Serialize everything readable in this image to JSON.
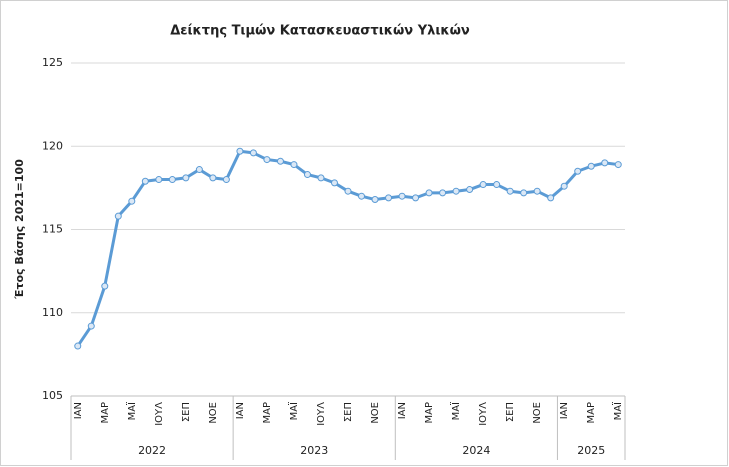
{
  "chart_data": {
    "type": "line",
    "title": "Δείκτης Τιμών Κατασκευαστικών Υλικών",
    "y_label": "Έτος Βάσης 2021=100",
    "groups": [
      {
        "label": "2022",
        "categories": [
          "ΙΑΝ",
          null,
          "ΜΑΡ",
          null,
          "ΜΑΪ",
          null,
          "ΙΟΥΛ",
          null,
          "ΣΕΠ",
          null,
          "ΝΟΕ",
          null
        ]
      },
      {
        "label": "2023",
        "categories": [
          "ΙΑΝ",
          null,
          "ΜΑΡ",
          null,
          "ΜΑΪ",
          null,
          "ΙΟΥΛ",
          null,
          "ΣΕΠ",
          null,
          "ΝΟΕ",
          null
        ]
      },
      {
        "label": "2024",
        "categories": [
          "ΙΑΝ",
          null,
          "ΜΑΡ",
          null,
          "ΜΑΪ",
          null,
          "ΙΟΥΛ",
          null,
          "ΣΕΠ",
          null,
          "ΝΟΕ",
          null
        ]
      },
      {
        "label": "2025",
        "categories": [
          "ΙΑΝ",
          null,
          "ΜΑΡ",
          null,
          "ΜΑΪ"
        ]
      }
    ],
    "values": [
      108.0,
      109.2,
      111.6,
      115.8,
      116.7,
      117.9,
      118.0,
      118.0,
      118.1,
      118.6,
      118.1,
      118.0,
      119.7,
      119.6,
      119.2,
      119.1,
      118.9,
      118.3,
      118.1,
      117.8,
      117.3,
      117.0,
      116.8,
      116.9,
      117.0,
      116.9,
      117.2,
      117.2,
      117.3,
      117.4,
      117.7,
      117.7,
      117.3,
      117.2,
      117.3,
      116.9,
      117.6,
      118.5,
      118.8,
      119.0,
      118.9
    ],
    "color": "#5b9bd5",
    "ylim": [
      105,
      125
    ],
    "yticks": [
      105,
      110,
      115,
      120,
      125
    ],
    "grid": true
  }
}
